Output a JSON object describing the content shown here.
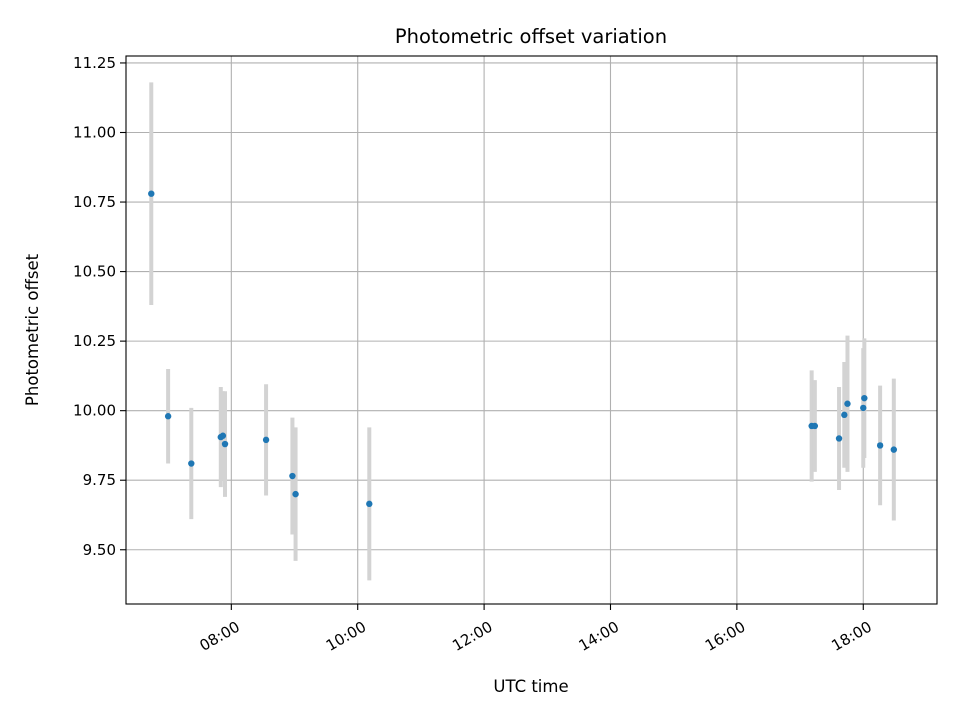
{
  "chart_data": {
    "type": "scatter",
    "title": "Photometric offset variation",
    "xlabel": "UTC time",
    "ylabel": "Photometric offset",
    "grid": true,
    "legend": "none",
    "xlim": [
      "06:20",
      "19:10"
    ],
    "ylim": [
      9.305,
      11.275
    ],
    "x_ticks": [
      "08:00",
      "10:00",
      "12:00",
      "14:00",
      "16:00",
      "18:00"
    ],
    "y_ticks": [
      "9.50",
      "9.75",
      "10.00",
      "10.25",
      "10.50",
      "10.75",
      "11.00",
      "11.25"
    ],
    "colors": {
      "point": "#1f77b4",
      "errorbar": "#d3d3d3",
      "grid": "#b0b0b0"
    },
    "series": [
      {
        "points": [
          {
            "x": "06:44",
            "y": 10.78,
            "yerr": 0.4
          },
          {
            "x": "07:00",
            "y": 9.98,
            "yerr": 0.17
          },
          {
            "x": "07:22",
            "y": 9.81,
            "yerr": 0.2
          },
          {
            "x": "07:50",
            "y": 9.905,
            "yerr": 0.18
          },
          {
            "x": "07:52",
            "y": 9.91,
            "yerr": 0.16
          },
          {
            "x": "07:54",
            "y": 9.88,
            "yerr": 0.19
          },
          {
            "x": "08:33",
            "y": 9.895,
            "yerr": 0.2
          },
          {
            "x": "08:58",
            "y": 9.765,
            "yerr": 0.21
          },
          {
            "x": "09:01",
            "y": 9.7,
            "yerr": 0.24
          },
          {
            "x": "10:11",
            "y": 9.665,
            "yerr": 0.275
          },
          {
            "x": "17:11",
            "y": 9.945,
            "yerr": 0.2
          },
          {
            "x": "17:14",
            "y": 9.945,
            "yerr": 0.165
          },
          {
            "x": "17:37",
            "y": 9.9,
            "yerr": 0.185
          },
          {
            "x": "17:42",
            "y": 9.985,
            "yerr": 0.19
          },
          {
            "x": "17:45",
            "y": 10.025,
            "yerr": 0.245
          },
          {
            "x": "18:00",
            "y": 10.01,
            "yerr": 0.215
          },
          {
            "x": "18:01",
            "y": 10.045,
            "yerr": 0.215
          },
          {
            "x": "18:16",
            "y": 9.875,
            "yerr": 0.215
          },
          {
            "x": "18:29",
            "y": 9.86,
            "yerr": 0.255
          }
        ]
      }
    ]
  }
}
